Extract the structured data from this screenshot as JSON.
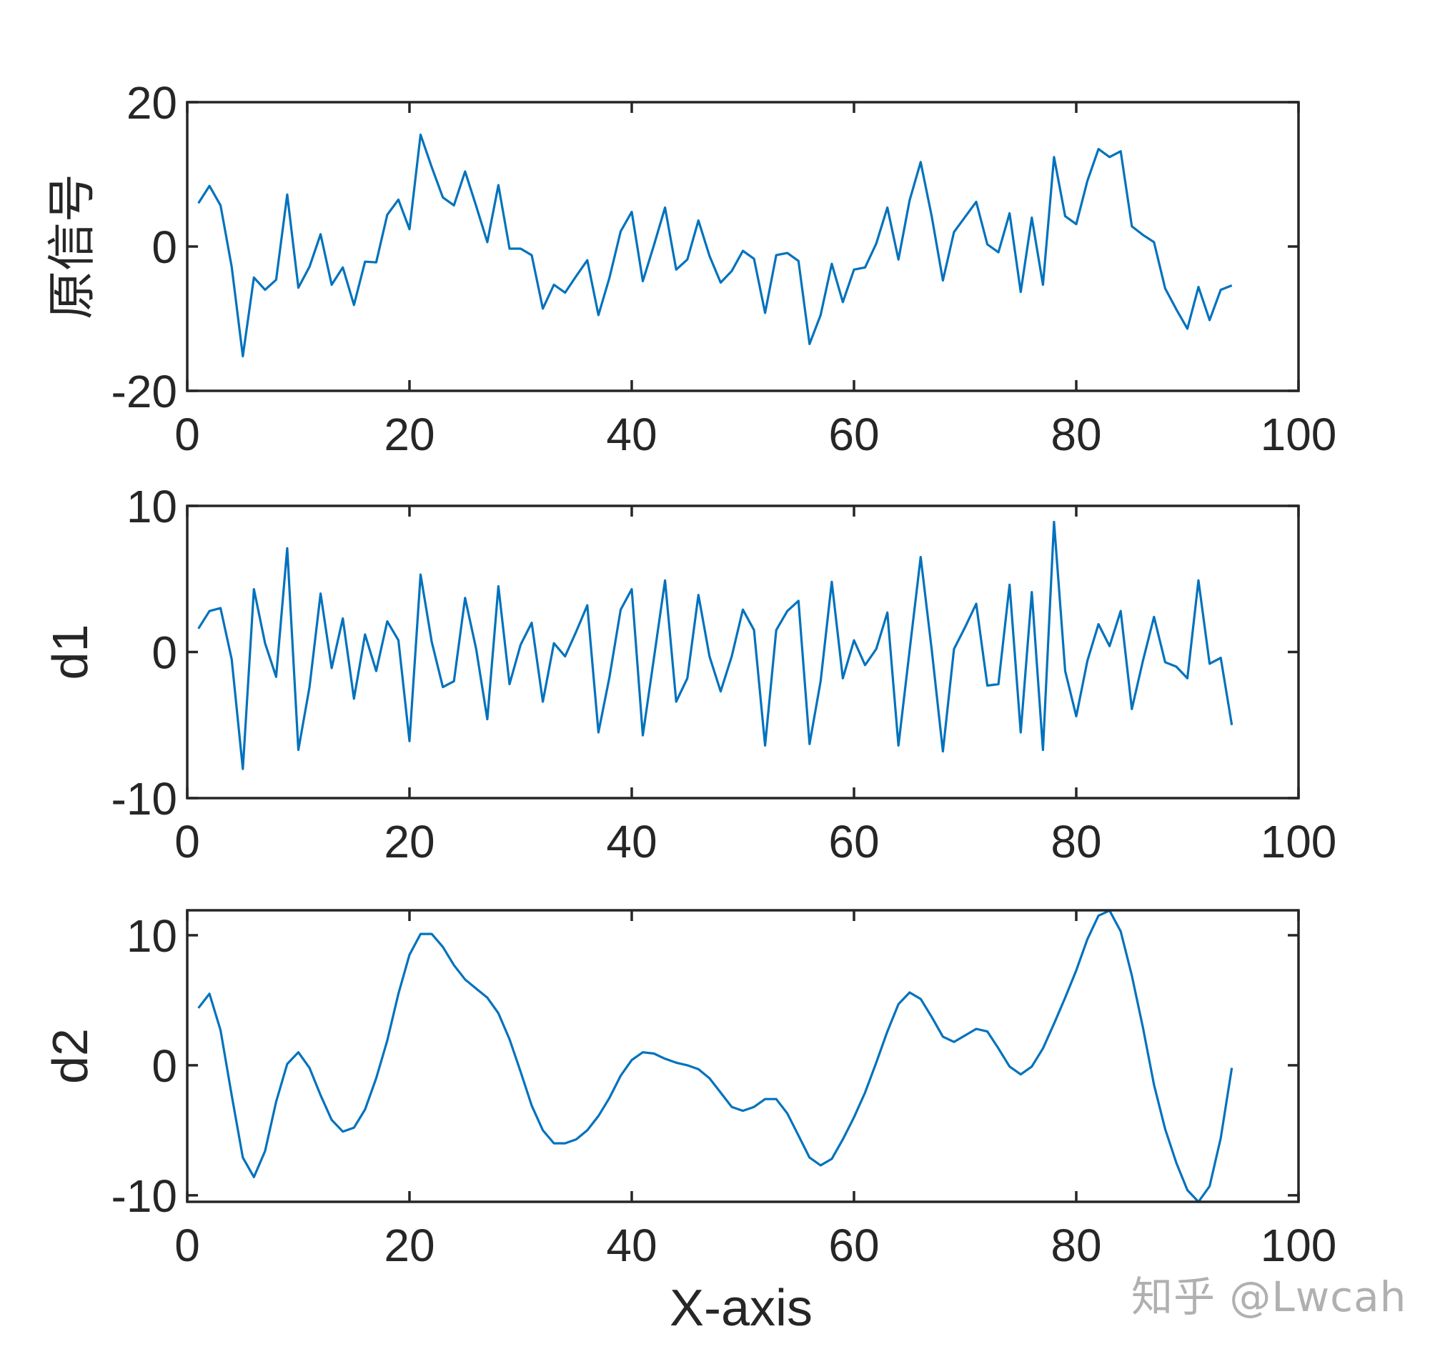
{
  "figure": {
    "xlabel": "X-axis",
    "watermark": "知乎 @Lwcah",
    "line_color": "#0072BD",
    "axis_color": "#262626",
    "text_color": "#262626"
  },
  "chart_data": [
    {
      "type": "line",
      "ylabel": "原信号",
      "xlabel": "",
      "xlim": [
        0,
        100
      ],
      "ylim": [
        -20,
        20
      ],
      "xticks": [
        0,
        20,
        40,
        60,
        80,
        100
      ],
      "yticks": [
        -20,
        0,
        20
      ],
      "ytick_labels": [
        "-20",
        "0",
        "20"
      ],
      "grid": false,
      "legend": null,
      "series": [
        {
          "name": "原信号",
          "x": [
            1,
            2,
            3,
            4,
            5,
            6,
            7,
            8,
            9,
            10,
            11,
            12,
            13,
            14,
            15,
            16,
            17,
            18,
            19,
            20,
            21,
            22,
            23,
            24,
            25,
            26,
            27,
            28,
            29,
            30,
            31,
            32,
            33,
            34,
            35,
            36,
            37,
            38,
            39,
            40,
            41,
            42,
            43,
            44,
            45,
            46,
            47,
            48,
            49,
            50,
            51,
            52,
            53,
            54,
            55,
            56,
            57,
            58,
            59,
            60,
            61,
            62,
            63,
            64,
            65,
            66,
            67,
            68,
            69,
            70,
            71,
            72,
            73,
            74,
            75,
            76,
            77,
            78,
            79,
            80,
            81,
            82,
            83,
            84,
            85,
            86,
            87,
            88,
            89,
            90,
            91,
            92,
            93,
            94
          ],
          "values": [
            6.0,
            8.4,
            5.7,
            -2.8,
            -15.2,
            -4.3,
            -6.0,
            -4.6,
            7.2,
            -5.7,
            -2.8,
            1.7,
            -5.3,
            -2.9,
            -8.1,
            -2.1,
            -2.2,
            4.4,
            6.5,
            2.4,
            15.5,
            11.0,
            6.8,
            5.7,
            10.4,
            5.6,
            0.6,
            8.5,
            -0.3,
            -0.3,
            -1.2,
            -8.6,
            -5.3,
            -6.4,
            -4.1,
            -1.9,
            -9.5,
            -4.3,
            2.1,
            4.8,
            -4.8,
            0.2,
            5.4,
            -3.2,
            -1.8,
            3.6,
            -1.3,
            -5.0,
            -3.4,
            -0.6,
            -1.7,
            -9.2,
            -1.2,
            -0.9,
            -2.0,
            -13.5,
            -9.5,
            -2.4,
            -7.7,
            -3.2,
            -2.9,
            0.4,
            5.4,
            -1.8,
            6.4,
            11.7,
            4.1,
            -4.7,
            2.0,
            4.1,
            6.2,
            0.3,
            -0.8,
            4.6,
            -6.3,
            4.0,
            -5.3,
            12.4,
            4.2,
            3.1,
            9.1,
            13.5,
            12.4,
            13.2,
            2.8,
            1.6,
            0.6,
            -5.8,
            -8.7,
            -11.4,
            -5.6,
            -10.2,
            -6.0,
            -5.4
          ]
        }
      ]
    },
    {
      "type": "line",
      "ylabel": "d1",
      "xlabel": "",
      "xlim": [
        0,
        100
      ],
      "ylim": [
        -10,
        10
      ],
      "xticks": [
        0,
        20,
        40,
        60,
        80,
        100
      ],
      "yticks": [
        -10,
        0,
        10
      ],
      "ytick_labels": [
        "-10",
        "0",
        "10"
      ],
      "grid": false,
      "legend": null,
      "series": [
        {
          "name": "d1",
          "x": [
            1,
            2,
            3,
            4,
            5,
            6,
            7,
            8,
            9,
            10,
            11,
            12,
            13,
            14,
            15,
            16,
            17,
            18,
            19,
            20,
            21,
            22,
            23,
            24,
            25,
            26,
            27,
            28,
            29,
            30,
            31,
            32,
            33,
            34,
            35,
            36,
            37,
            38,
            39,
            40,
            41,
            42,
            43,
            44,
            45,
            46,
            47,
            48,
            49,
            50,
            51,
            52,
            53,
            54,
            55,
            56,
            57,
            58,
            59,
            60,
            61,
            62,
            63,
            64,
            65,
            66,
            67,
            68,
            69,
            70,
            71,
            72,
            73,
            74,
            75,
            76,
            77,
            78,
            79,
            80,
            81,
            82,
            83,
            84,
            85,
            86,
            87,
            88,
            89,
            90,
            91,
            92,
            93,
            94
          ],
          "values": [
            1.6,
            2.8,
            3.0,
            -0.5,
            -8.0,
            4.3,
            0.6,
            -1.7,
            7.1,
            -6.7,
            -2.4,
            4.0,
            -1.1,
            2.3,
            -3.2,
            1.2,
            -1.3,
            2.1,
            0.8,
            -6.1,
            5.3,
            0.7,
            -2.4,
            -2.0,
            3.7,
            0.2,
            -4.6,
            4.5,
            -2.2,
            0.5,
            2.0,
            -3.4,
            0.6,
            -0.3,
            1.4,
            3.2,
            -5.5,
            -1.7,
            2.9,
            4.3,
            -5.7,
            -0.4,
            4.9,
            -3.4,
            -1.8,
            3.9,
            -0.3,
            -2.7,
            -0.3,
            2.9,
            1.5,
            -6.4,
            1.5,
            2.8,
            3.5,
            -6.3,
            -2.0,
            4.8,
            -1.8,
            0.8,
            -0.9,
            0.2,
            2.7,
            -6.4,
            0.1,
            6.5,
            0.1,
            -6.8,
            0.2,
            1.7,
            3.3,
            -2.3,
            -2.2,
            4.6,
            -5.5,
            4.1,
            -6.7,
            8.9,
            -1.3,
            -4.4,
            -0.6,
            1.9,
            0.4,
            2.8,
            -3.9,
            -0.6,
            2.4,
            -0.7,
            -1.0,
            -1.8,
            4.9,
            -0.8,
            -0.4,
            -5.0
          ]
        }
      ]
    },
    {
      "type": "line",
      "ylabel": "d2",
      "xlabel": "X-axis",
      "xlim": [
        0,
        100
      ],
      "ylim": [
        -10.5,
        11.92
      ],
      "xticks": [
        0,
        20,
        40,
        60,
        80,
        100
      ],
      "yticks": [
        -10,
        0,
        10
      ],
      "ytick_labels": [
        "-10",
        "0",
        "10"
      ],
      "grid": false,
      "legend": null,
      "series": [
        {
          "name": "d2",
          "x": [
            1,
            2,
            3,
            4,
            5,
            6,
            7,
            8,
            9,
            10,
            11,
            12,
            13,
            14,
            15,
            16,
            17,
            18,
            19,
            20,
            21,
            22,
            23,
            24,
            25,
            26,
            27,
            28,
            29,
            30,
            31,
            32,
            33,
            34,
            35,
            36,
            37,
            38,
            39,
            40,
            41,
            42,
            43,
            44,
            45,
            46,
            47,
            48,
            49,
            50,
            51,
            52,
            53,
            54,
            55,
            56,
            57,
            58,
            59,
            60,
            61,
            62,
            63,
            64,
            65,
            66,
            67,
            68,
            69,
            70,
            71,
            72,
            73,
            74,
            75,
            76,
            77,
            78,
            79,
            80,
            81,
            82,
            83,
            84,
            85,
            86,
            87,
            88,
            89,
            90,
            91,
            92,
            93,
            94
          ],
          "values": [
            4.4,
            5.5,
            2.7,
            -2.3,
            -7.1,
            -8.6,
            -6.6,
            -2.8,
            0.1,
            1.0,
            -0.2,
            -2.3,
            -4.2,
            -5.1,
            -4.8,
            -3.4,
            -1.0,
            1.9,
            5.5,
            8.5,
            10.1,
            10.1,
            9.1,
            7.7,
            6.6,
            5.9,
            5.2,
            4.0,
            2.0,
            -0.5,
            -3.1,
            -5.0,
            -6.0,
            -6.0,
            -5.7,
            -5.0,
            -3.9,
            -2.5,
            -0.8,
            0.4,
            1.0,
            0.9,
            0.5,
            0.2,
            0.0,
            -0.3,
            -1.0,
            -2.1,
            -3.2,
            -3.5,
            -3.2,
            -2.6,
            -2.6,
            -3.7,
            -5.4,
            -7.1,
            -7.7,
            -7.2,
            -5.7,
            -4.0,
            -2.1,
            0.2,
            2.6,
            4.7,
            5.6,
            5.1,
            3.7,
            2.2,
            1.8,
            2.3,
            2.8,
            2.6,
            1.3,
            -0.1,
            -0.7,
            -0.1,
            1.3,
            3.2,
            5.2,
            7.3,
            9.7,
            11.5,
            11.9,
            10.3,
            6.9,
            2.9,
            -1.5,
            -4.9,
            -7.5,
            -9.6,
            -10.5,
            -9.3,
            -5.6,
            -0.2
          ]
        }
      ]
    }
  ]
}
